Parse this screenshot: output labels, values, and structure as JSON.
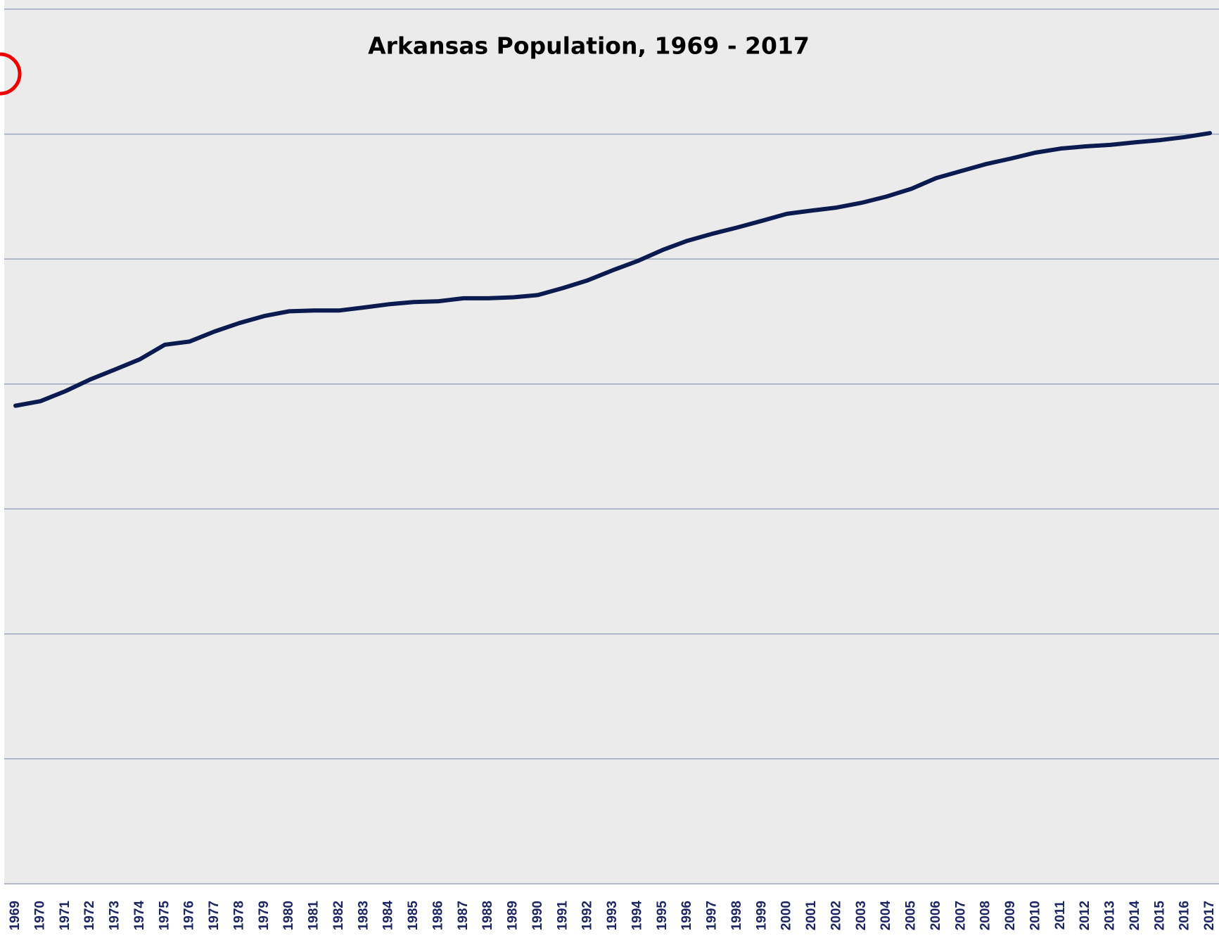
{
  "chart_data": {
    "type": "line",
    "title": "Arkansas Population, 1969 - 2017",
    "categories": [
      "1969",
      "1970",
      "1971",
      "1972",
      "1973",
      "1974",
      "1975",
      "1976",
      "1977",
      "1978",
      "1979",
      "1980",
      "1981",
      "1982",
      "1983",
      "1984",
      "1985",
      "1986",
      "1987",
      "1988",
      "1989",
      "1990",
      "1991",
      "1992",
      "1993",
      "1994",
      "1995",
      "1996",
      "1997",
      "1998",
      "1999",
      "2000",
      "2001",
      "2002",
      "2003",
      "2004",
      "2005",
      "2006",
      "2007",
      "2008",
      "2009",
      "2010",
      "2011",
      "2012",
      "2013",
      "2014",
      "2015",
      "2016",
      "2017"
    ],
    "series": [
      {
        "name": "Population",
        "color": "#0b1a4f",
        "values": [
          1913000,
          1931000,
          1971000,
          2018000,
          2058000,
          2099000,
          2157000,
          2170000,
          2210000,
          2244000,
          2272000,
          2291000,
          2294000,
          2294000,
          2306000,
          2319000,
          2328000,
          2331000,
          2343000,
          2343000,
          2347000,
          2356000,
          2384000,
          2415000,
          2455000,
          2492000,
          2536000,
          2573000,
          2601000,
          2626000,
          2653000,
          2681000,
          2694000,
          2706000,
          2725000,
          2750000,
          2781000,
          2824000,
          2852000,
          2880000,
          2902000,
          2926000,
          2942000,
          2951000,
          2957000,
          2967000,
          2976000,
          2988000,
          3004000
        ]
      }
    ],
    "ylim": [
      0,
      3500000
    ],
    "yticks": [
      0,
      500000,
      1000000,
      1500000,
      2000000,
      2500000,
      3000000,
      3500000
    ],
    "grid": true
  }
}
